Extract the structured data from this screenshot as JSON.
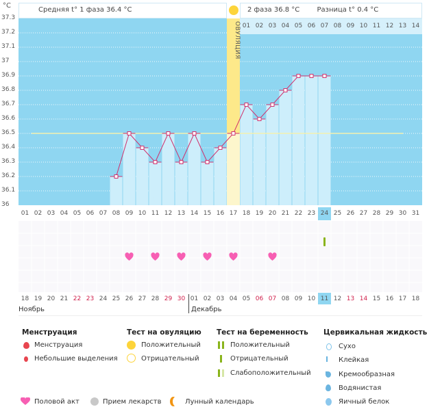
{
  "unit": "°C",
  "header": {
    "phase1": "Средняя t° 1 фаза 36.4 °C",
    "phase2": "2 фаза 36.8 °C",
    "diff": "Разница t° 0.4 °C",
    "ovulation_label": "ОВУЛЯЦИЯ"
  },
  "colors": {
    "bg": "#8fd6f1",
    "bar": "#cdeefb",
    "line": "#d0306c",
    "ovulation": "#fde98a",
    "cover": "#f3f0b0",
    "heart": "#f75fb3",
    "test": "#8ab41c",
    "moon": "#f29512"
  },
  "chart_data": {
    "type": "line",
    "ylim": [
      36,
      37.3
    ],
    "yticks": [
      "37.3",
      "37.2",
      "37.1",
      "37",
      "36.9",
      "36.8",
      "36.7",
      "36.6",
      "36.5",
      "36.4",
      "36.3",
      "36.2",
      "36.1",
      "36"
    ],
    "x": [
      "01",
      "02",
      "03",
      "04",
      "05",
      "06",
      "07",
      "08",
      "09",
      "10",
      "11",
      "12",
      "13",
      "14",
      "15",
      "16",
      "17",
      "18",
      "19",
      "20",
      "21",
      "22",
      "23",
      "24",
      "25",
      "26",
      "27",
      "28",
      "29",
      "30",
      "31"
    ],
    "values": [
      null,
      null,
      null,
      null,
      null,
      null,
      null,
      36.2,
      36.5,
      36.4,
      36.3,
      36.5,
      36.3,
      36.5,
      36.3,
      36.4,
      36.5,
      36.7,
      36.6,
      36.7,
      36.8,
      36.9,
      36.9,
      36.9,
      null,
      null,
      null,
      null,
      null,
      null,
      null
    ],
    "cover_line": 36.5,
    "ovulation_day": 17,
    "current_day": 24,
    "phase2_days": [
      "01",
      "02",
      "03",
      "04",
      "05",
      "06",
      "07",
      "08",
      "09",
      "10",
      "11",
      "12",
      "13",
      "14"
    ]
  },
  "markers": {
    "moon_days": [
      11
    ],
    "heart_days": [
      9,
      11,
      13,
      15,
      17,
      20
    ],
    "pregnancy_test_negative_days": [
      24
    ]
  },
  "dates": {
    "items": [
      "18",
      "19",
      "20",
      "21",
      "22",
      "23",
      "24",
      "25",
      "26",
      "27",
      "28",
      "29",
      "30",
      "01",
      "02",
      "03",
      "04",
      "05",
      "06",
      "07",
      "08",
      "09",
      "10",
      "11",
      "12",
      "13",
      "14",
      "15",
      "16",
      "17",
      "18"
    ],
    "weekend": [
      4,
      5,
      11,
      12,
      18,
      19,
      25,
      26
    ],
    "months": [
      "Ноябрь",
      "Декабрь"
    ]
  },
  "legend": {
    "menstruation": {
      "title": "Менструация",
      "items": [
        "Менструация",
        "Небольшие выделения"
      ]
    },
    "ovulation_test": {
      "title": "Тест на овуляцию",
      "items": [
        "Положительный",
        "Отрицательный"
      ]
    },
    "pregnancy_test": {
      "title": "Тест на беременность",
      "items": [
        "Положительный",
        "Отрицательный",
        "Слабоположительный"
      ]
    },
    "cervical": {
      "title": "Цервикальная жидкость",
      "items": [
        "Сухо",
        "Клейкая",
        "Кремообразная",
        "Водянистая",
        "Яичный белок"
      ]
    },
    "other": [
      "Половой акт",
      "Прием лекарств",
      "Лунный календарь"
    ]
  }
}
